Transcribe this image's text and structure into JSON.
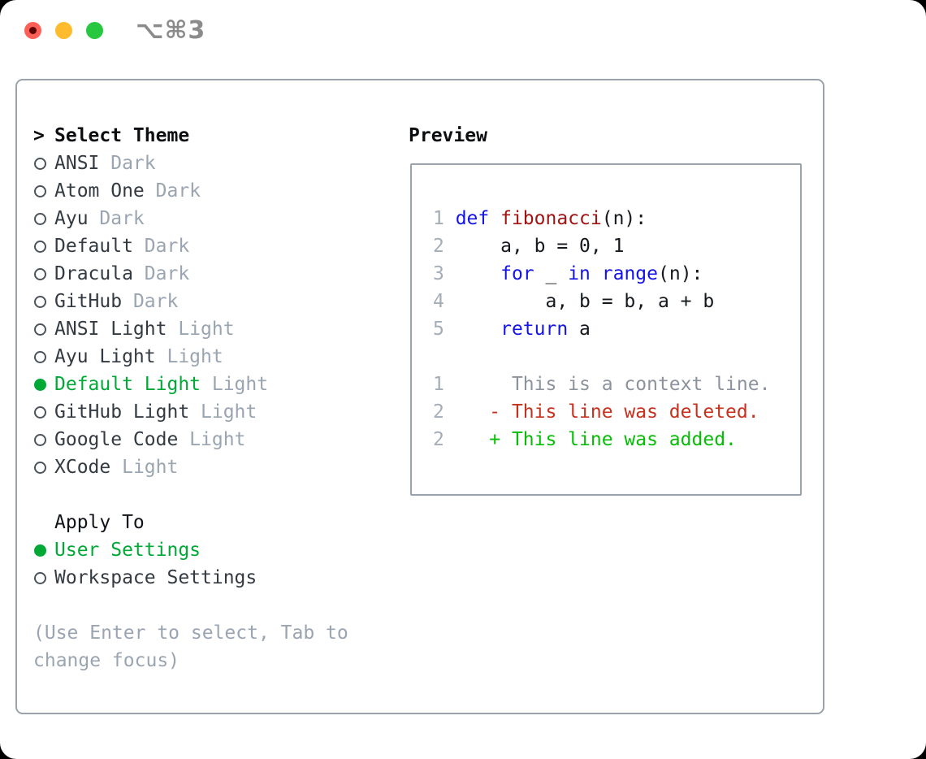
{
  "titlebar": {
    "title": "⌥⌘3"
  },
  "theme_list": {
    "header_prefix": ">",
    "header": "Select Theme",
    "items": [
      {
        "name": "ANSI",
        "variant": "Dark",
        "selected": false
      },
      {
        "name": "Atom One",
        "variant": "Dark",
        "selected": false
      },
      {
        "name": "Ayu",
        "variant": "Dark",
        "selected": false
      },
      {
        "name": "Default",
        "variant": "Dark",
        "selected": false
      },
      {
        "name": "Dracula",
        "variant": "Dark",
        "selected": false
      },
      {
        "name": "GitHub",
        "variant": "Dark",
        "selected": false
      },
      {
        "name": "ANSI Light",
        "variant": "Light",
        "selected": false
      },
      {
        "name": "Ayu Light",
        "variant": "Light",
        "selected": false
      },
      {
        "name": "Default Light",
        "variant": "Light",
        "selected": true
      },
      {
        "name": "GitHub Light",
        "variant": "Light",
        "selected": false
      },
      {
        "name": "Google Code",
        "variant": "Light",
        "selected": false
      },
      {
        "name": "XCode",
        "variant": "Light",
        "selected": false
      }
    ]
  },
  "apply_to": {
    "header": "Apply To",
    "options": [
      {
        "name": "User Settings",
        "selected": true
      },
      {
        "name": "Workspace Settings",
        "selected": false
      }
    ]
  },
  "hint": "(Use Enter to select, Tab to change focus)",
  "preview": {
    "title": "Preview",
    "lines": [
      {
        "segments": [
          [
            "1 ",
            "line-number"
          ],
          [
            "def ",
            "keyword"
          ],
          [
            "fibonacci",
            "function"
          ],
          [
            "(n):",
            "plain"
          ]
        ]
      },
      {
        "segments": [
          [
            "2 ",
            "line-number"
          ],
          [
            "    a, b = 0, 1",
            "plain"
          ]
        ]
      },
      {
        "segments": [
          [
            "3 ",
            "line-number"
          ],
          [
            "    ",
            "plain"
          ],
          [
            "for",
            "keyword"
          ],
          [
            " _ ",
            "plain"
          ],
          [
            "in",
            "keyword"
          ],
          [
            " ",
            "plain"
          ],
          [
            "range",
            "keyword"
          ],
          [
            "(n):",
            "plain"
          ]
        ]
      },
      {
        "segments": [
          [
            "4 ",
            "line-number"
          ],
          [
            "        a, b = b, a + b",
            "plain"
          ]
        ]
      },
      {
        "segments": [
          [
            "5 ",
            "line-number"
          ],
          [
            "    ",
            "plain"
          ],
          [
            "return",
            "keyword"
          ],
          [
            " a",
            "plain"
          ]
        ]
      },
      {
        "segments": []
      },
      {
        "segments": [
          [
            "1",
            "line-number"
          ],
          [
            "      This is a context line.",
            "context"
          ]
        ]
      },
      {
        "segments": [
          [
            "2",
            "line-number"
          ],
          [
            "    - This line was deleted.",
            "deleted"
          ]
        ]
      },
      {
        "segments": [
          [
            "2",
            "line-number"
          ],
          [
            "    + This line was added.",
            "added"
          ]
        ]
      }
    ]
  },
  "colors": {
    "selected_green": "#00a936",
    "added_green": "#06bd06",
    "deleted_red": "#c5311c",
    "keyword_blue": "#1414e8",
    "function_red": "#a51212",
    "context_gray": "#8d939c",
    "line_number_gray": "#a4adb8",
    "muted_gray": "#9aa5b1",
    "item_text": "#343a42",
    "panel_border": "#9aa3ad",
    "traffic_red": "#fe5f57",
    "traffic_yellow": "#febb2e",
    "traffic_green": "#27c83f"
  }
}
